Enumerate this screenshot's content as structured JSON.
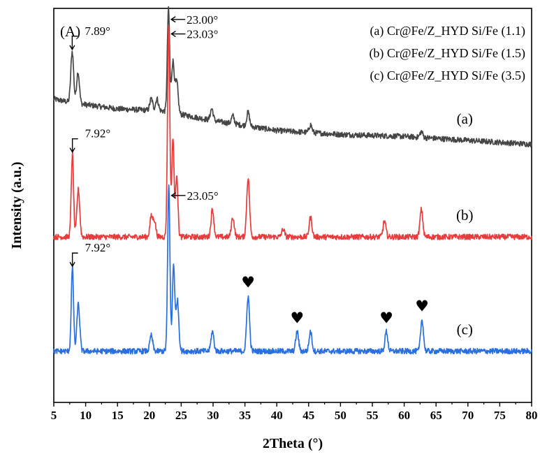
{
  "chart_data": {
    "type": "line",
    "title": "",
    "panel_label": "(A)",
    "xlabel": "2Theta (°)",
    "ylabel": "Intensity (a.u.)",
    "xlim": [
      5,
      80
    ],
    "xticks": [
      5,
      10,
      15,
      20,
      25,
      30,
      35,
      40,
      45,
      50,
      55,
      60,
      65,
      70,
      75,
      80
    ],
    "ylim": [
      0,
      1
    ],
    "grid": false,
    "legend_position": "top-right",
    "legend": [
      "(a) Cr@Fe/Z_HYD Si/Fe (1.1)",
      "(b) Cr@Fe/Z_HYD Si/Fe (1.5)",
      "(c) Cr@Fe/Z_HYD Si/Fe (3.5)"
    ],
    "series": [
      {
        "tag": "(a)",
        "color": "#454545",
        "baseline_points": [
          [
            5,
            0.77
          ],
          [
            8,
            0.76
          ],
          [
            15,
            0.745
          ],
          [
            22,
            0.74
          ],
          [
            30,
            0.715
          ],
          [
            40,
            0.69
          ],
          [
            50,
            0.68
          ],
          [
            60,
            0.675
          ],
          [
            70,
            0.665
          ],
          [
            80,
            0.655
          ]
        ],
        "peaks": [
          [
            7.89,
            0.13
          ],
          [
            8.8,
            0.08
          ],
          [
            20.3,
            0.03
          ],
          [
            21.2,
            0.03
          ],
          [
            23.0,
            0.26
          ],
          [
            23.7,
            0.13
          ],
          [
            24.3,
            0.08
          ],
          [
            29.8,
            0.03
          ],
          [
            33.1,
            0.02
          ],
          [
            35.5,
            0.035
          ],
          [
            45.3,
            0.02
          ],
          [
            62.7,
            0.015
          ]
        ],
        "annotations": [
          {
            "text": "7.89°",
            "x": 7.89
          },
          {
            "text": "23.00°",
            "x": 23.0
          }
        ]
      },
      {
        "tag": "(b)",
        "color": "#e53d3d",
        "baseline_points": [
          [
            5,
            0.42
          ],
          [
            80,
            0.42
          ]
        ],
        "peaks": [
          [
            7.92,
            0.21
          ],
          [
            8.85,
            0.12
          ],
          [
            20.3,
            0.05
          ],
          [
            20.8,
            0.04
          ],
          [
            23.03,
            0.54
          ],
          [
            23.7,
            0.25
          ],
          [
            24.3,
            0.16
          ],
          [
            29.9,
            0.07
          ],
          [
            33.1,
            0.05
          ],
          [
            35.5,
            0.15
          ],
          [
            41.0,
            0.02
          ],
          [
            45.3,
            0.05
          ],
          [
            56.9,
            0.04
          ],
          [
            62.7,
            0.07
          ]
        ],
        "annotations": [
          {
            "text": "7.92°",
            "x": 7.92
          },
          {
            "text": "23.03°",
            "x": 23.03
          }
        ]
      },
      {
        "tag": "(c)",
        "color": "#2a6fdb",
        "baseline_points": [
          [
            5,
            0.13
          ],
          [
            80,
            0.13
          ]
        ],
        "peaks": [
          [
            7.92,
            0.21
          ],
          [
            8.85,
            0.12
          ],
          [
            20.3,
            0.04
          ],
          [
            23.05,
            0.42
          ],
          [
            23.8,
            0.22
          ],
          [
            24.4,
            0.13
          ],
          [
            29.9,
            0.05
          ],
          [
            35.5,
            0.14
          ],
          [
            43.2,
            0.05
          ],
          [
            45.3,
            0.05
          ],
          [
            57.2,
            0.05
          ],
          [
            62.8,
            0.08
          ]
        ],
        "annotations": [
          {
            "text": "7.92°",
            "x": 7.92
          },
          {
            "text": "23.05°",
            "x": 23.05
          }
        ],
        "markers": [
          {
            "symbol": "♥",
            "x": 35.5
          },
          {
            "symbol": "♥",
            "x": 43.2
          },
          {
            "symbol": "♥",
            "x": 57.2
          },
          {
            "symbol": "♥",
            "x": 62.8
          }
        ]
      }
    ]
  }
}
